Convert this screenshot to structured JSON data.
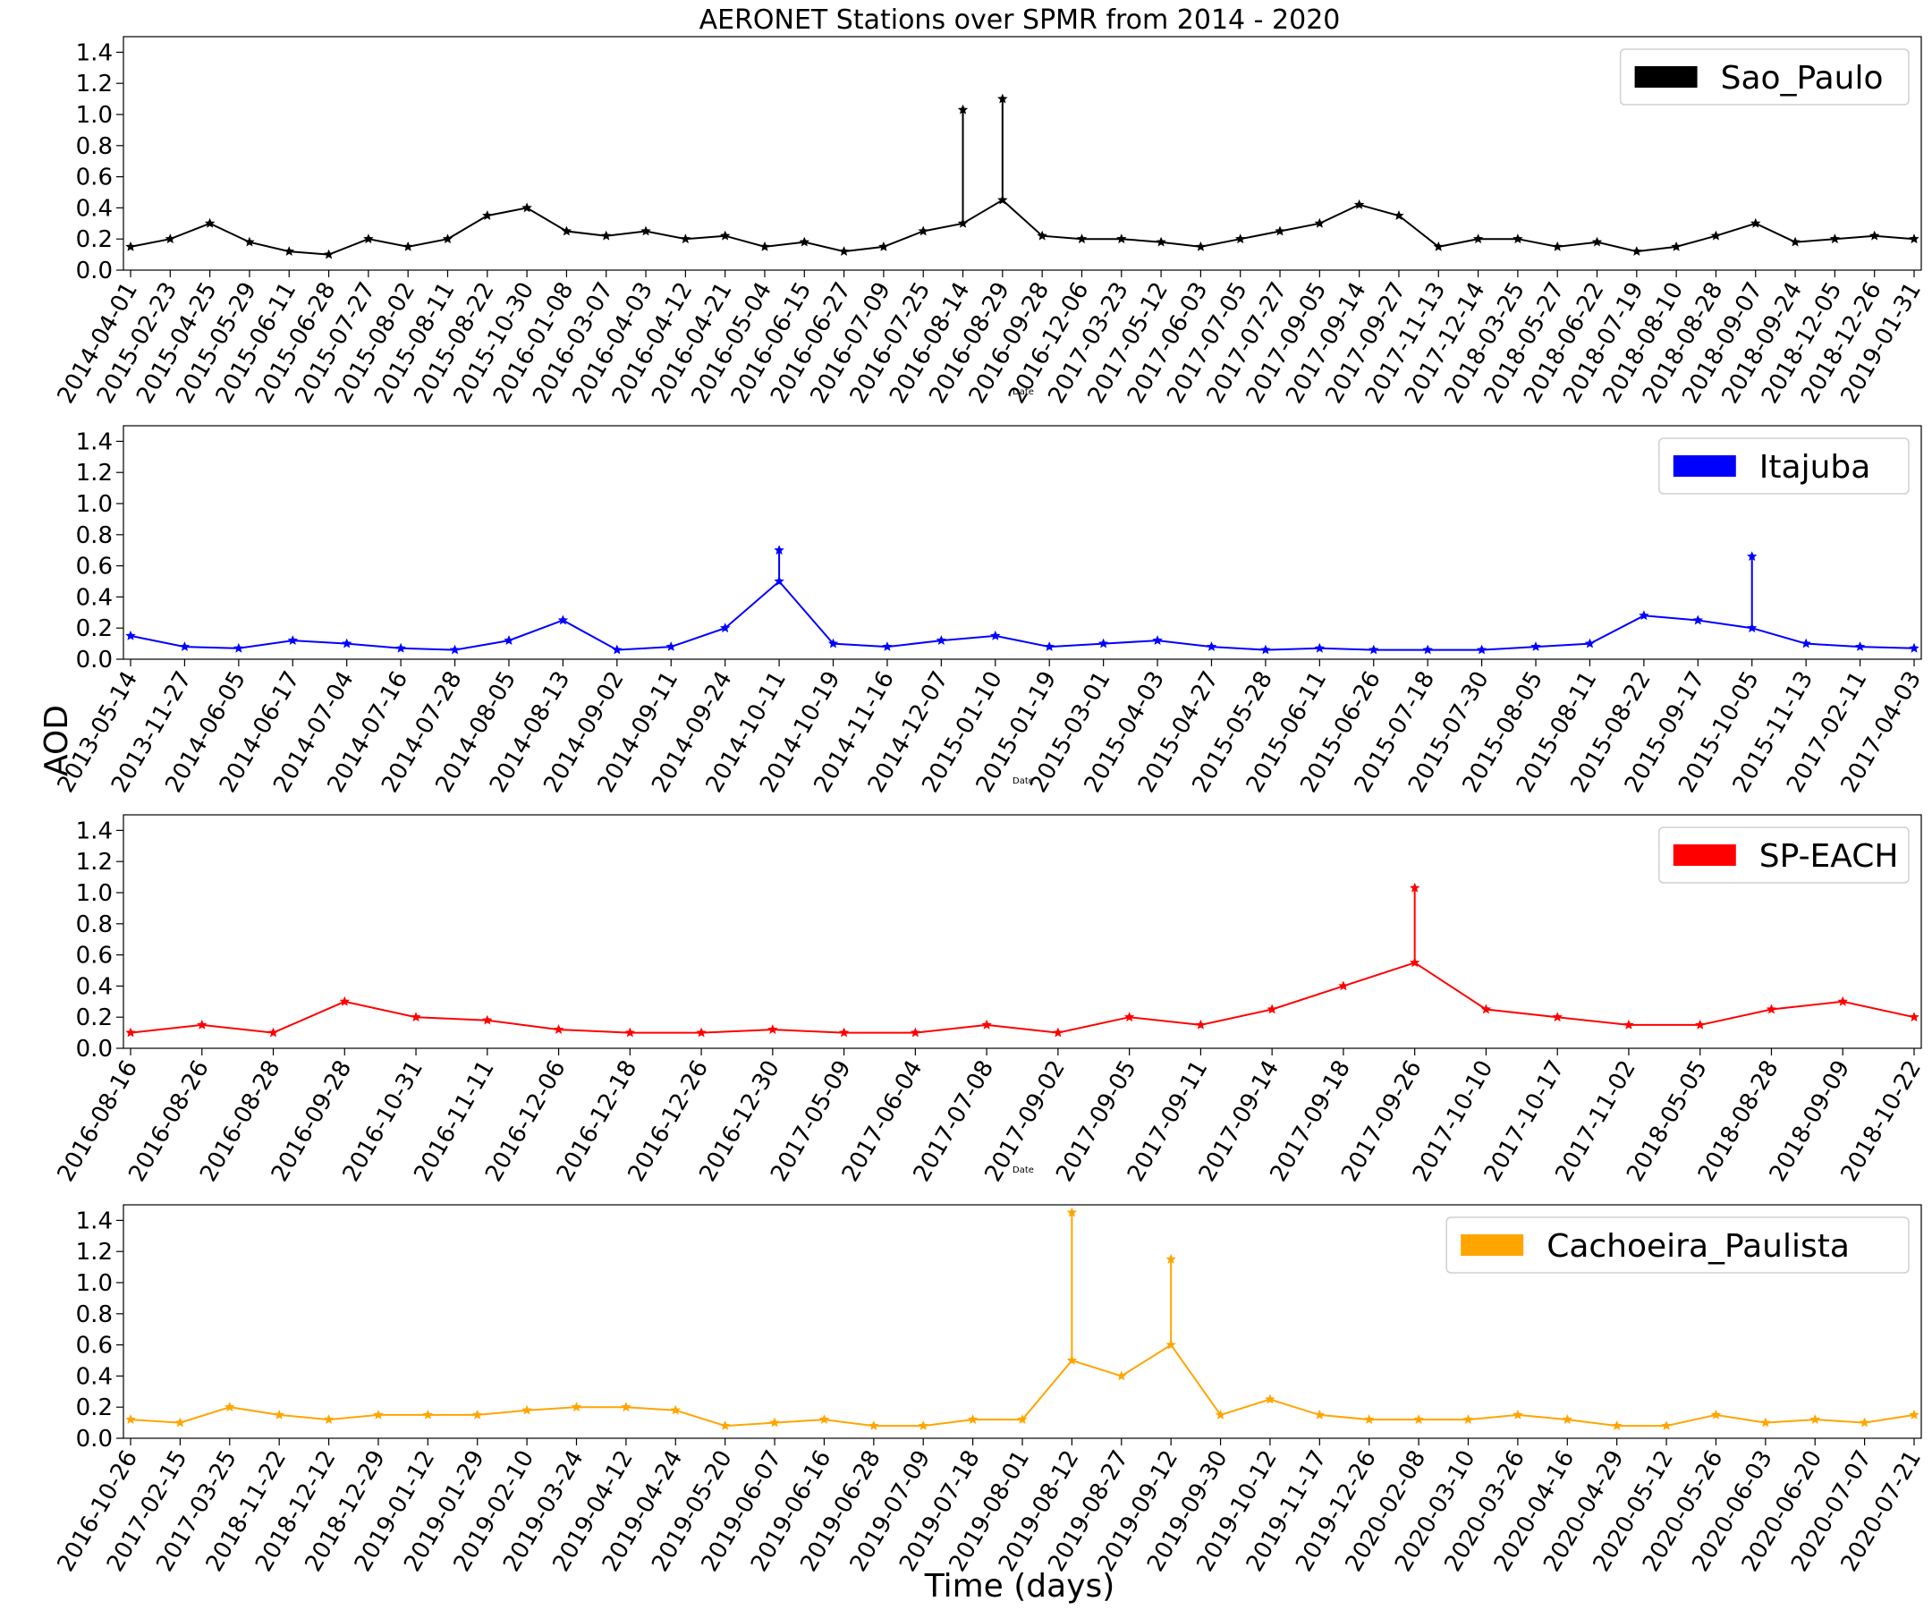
{
  "figure": {
    "title": "AERONET Stations over SPMR from 2014 - 2020",
    "ylabel": "AOD",
    "xlabel": "Time (days)"
  },
  "chart_data": [
    {
      "type": "line",
      "title": "AERONET Stations over SPMR from 2014 - 2020",
      "xlabel": "Date",
      "ylabel": "",
      "ylim": [
        0,
        1.5
      ],
      "yticks": [
        0.0,
        0.2,
        0.4,
        0.6,
        0.8,
        1.0,
        1.2,
        1.4
      ],
      "legend_position": "top-right",
      "grid": false,
      "marker": "star",
      "series": [
        {
          "name": "Sao_Paulo",
          "color": "#000000",
          "x": [
            "2014-04-01",
            "2015-02-23",
            "2015-04-25",
            "2015-05-29",
            "2015-06-11",
            "2015-06-28",
            "2015-07-27",
            "2015-08-02",
            "2015-08-11",
            "2015-08-22",
            "2015-10-30",
            "2016-01-08",
            "2016-03-07",
            "2016-04-03",
            "2016-04-12",
            "2016-04-21",
            "2016-05-04",
            "2016-06-15",
            "2016-06-27",
            "2016-07-09",
            "2016-07-25",
            "2016-08-14",
            "2016-08-29",
            "2016-09-28",
            "2016-12-06",
            "2017-03-23",
            "2017-05-12",
            "2017-06-03",
            "2017-07-05",
            "2017-07-27",
            "2017-09-05",
            "2017-09-14",
            "2017-09-27",
            "2017-11-13",
            "2017-12-14",
            "2018-03-25",
            "2018-05-27",
            "2018-06-22",
            "2018-07-19",
            "2018-08-10",
            "2018-08-28",
            "2018-09-07",
            "2018-09-24",
            "2018-12-05",
            "2018-12-26",
            "2019-01-31"
          ],
          "values": [
            0.15,
            0.2,
            0.3,
            0.18,
            0.12,
            0.1,
            0.2,
            0.15,
            0.2,
            0.35,
            0.4,
            0.25,
            0.22,
            0.25,
            0.2,
            0.22,
            0.15,
            0.18,
            0.12,
            0.15,
            0.25,
            0.3,
            0.45,
            0.22,
            0.2,
            0.2,
            0.18,
            0.15,
            0.2,
            0.25,
            0.3,
            0.42,
            0.35,
            0.15,
            0.2,
            0.2,
            0.15,
            0.18,
            0.12,
            0.15,
            0.22,
            0.3,
            0.18,
            0.2,
            0.22,
            0.2
          ]
        }
      ],
      "annotations": [
        {
          "x": "2016-08-14",
          "value": 1.03
        },
        {
          "x": "2016-08-29",
          "value": 1.1
        }
      ]
    },
    {
      "type": "line",
      "xlabel": "Date",
      "ylabel": "",
      "ylim": [
        0,
        1.5
      ],
      "yticks": [
        0.0,
        0.2,
        0.4,
        0.6,
        0.8,
        1.0,
        1.2,
        1.4
      ],
      "legend_position": "top-right",
      "grid": false,
      "marker": "star",
      "series": [
        {
          "name": "Itajuba",
          "color": "#0000ff",
          "x": [
            "2013-05-14",
            "2013-11-27",
            "2014-06-05",
            "2014-06-17",
            "2014-07-04",
            "2014-07-16",
            "2014-07-28",
            "2014-08-05",
            "2014-08-13",
            "2014-09-02",
            "2014-09-11",
            "2014-09-24",
            "2014-10-11",
            "2014-10-19",
            "2014-11-16",
            "2014-12-07",
            "2015-01-10",
            "2015-01-19",
            "2015-03-01",
            "2015-04-03",
            "2015-04-27",
            "2015-05-28",
            "2015-06-11",
            "2015-06-26",
            "2015-07-18",
            "2015-07-30",
            "2015-08-05",
            "2015-08-11",
            "2015-08-22",
            "2015-09-17",
            "2015-10-05",
            "2015-11-13",
            "2017-02-11",
            "2017-04-03"
          ],
          "values": [
            0.15,
            0.08,
            0.07,
            0.12,
            0.1,
            0.07,
            0.06,
            0.12,
            0.25,
            0.06,
            0.08,
            0.2,
            0.5,
            0.1,
            0.08,
            0.12,
            0.15,
            0.08,
            0.1,
            0.12,
            0.08,
            0.06,
            0.07,
            0.06,
            0.06,
            0.06,
            0.08,
            0.1,
            0.28,
            0.25,
            0.2,
            0.1,
            0.08,
            0.07
          ]
        }
      ],
      "annotations": [
        {
          "x": "2014-10-11",
          "value": 0.7
        },
        {
          "x": "2015-10-05",
          "value": 0.66
        }
      ]
    },
    {
      "type": "line",
      "xlabel": "Date",
      "ylabel": "",
      "ylim": [
        0,
        1.5
      ],
      "yticks": [
        0.0,
        0.2,
        0.4,
        0.6,
        0.8,
        1.0,
        1.2,
        1.4
      ],
      "legend_position": "top-right",
      "grid": false,
      "marker": "star",
      "series": [
        {
          "name": "SP-EACH",
          "color": "#ff0000",
          "x": [
            "2016-08-16",
            "2016-08-26",
            "2016-08-28",
            "2016-09-28",
            "2016-10-31",
            "2016-11-11",
            "2016-12-06",
            "2016-12-18",
            "2016-12-26",
            "2016-12-30",
            "2017-05-09",
            "2017-06-04",
            "2017-07-08",
            "2017-09-02",
            "2017-09-05",
            "2017-09-11",
            "2017-09-14",
            "2017-09-18",
            "2017-09-26",
            "2017-10-10",
            "2017-10-17",
            "2017-11-02",
            "2018-05-05",
            "2018-08-28",
            "2018-09-09",
            "2018-10-22"
          ],
          "values": [
            0.1,
            0.15,
            0.1,
            0.3,
            0.2,
            0.18,
            0.12,
            0.1,
            0.1,
            0.12,
            0.1,
            0.1,
            0.15,
            0.1,
            0.2,
            0.15,
            0.25,
            0.4,
            0.55,
            0.25,
            0.2,
            0.15,
            0.15,
            0.25,
            0.3,
            0.2
          ]
        }
      ],
      "annotations": [
        {
          "x": "2017-09-26",
          "value": 1.03
        }
      ]
    },
    {
      "type": "line",
      "xlabel": "Time (days)",
      "ylabel": "",
      "ylim": [
        0,
        1.5
      ],
      "yticks": [
        0.0,
        0.2,
        0.4,
        0.6,
        0.8,
        1.0,
        1.2,
        1.4
      ],
      "legend_position": "top-right",
      "grid": false,
      "marker": "star",
      "series": [
        {
          "name": "Cachoeira_Paulista",
          "color": "#ffa500",
          "x": [
            "2016-10-26",
            "2017-02-15",
            "2017-03-25",
            "2018-11-22",
            "2018-12-12",
            "2018-12-29",
            "2019-01-12",
            "2019-01-29",
            "2019-02-10",
            "2019-03-24",
            "2019-04-12",
            "2019-04-24",
            "2019-05-20",
            "2019-06-07",
            "2019-06-16",
            "2019-06-28",
            "2019-07-09",
            "2019-07-18",
            "2019-08-01",
            "2019-08-12",
            "2019-08-27",
            "2019-09-12",
            "2019-09-30",
            "2019-10-12",
            "2019-11-17",
            "2019-12-26",
            "2020-02-08",
            "2020-03-10",
            "2020-03-26",
            "2020-04-16",
            "2020-04-29",
            "2020-05-12",
            "2020-05-26",
            "2020-06-03",
            "2020-06-20",
            "2020-07-07",
            "2020-07-21"
          ],
          "values": [
            0.12,
            0.1,
            0.2,
            0.15,
            0.12,
            0.15,
            0.15,
            0.15,
            0.18,
            0.2,
            0.2,
            0.18,
            0.08,
            0.1,
            0.12,
            0.08,
            0.08,
            0.12,
            0.12,
            0.5,
            0.4,
            0.6,
            0.15,
            0.25,
            0.15,
            0.12,
            0.12,
            0.12,
            0.15,
            0.12,
            0.08,
            0.08,
            0.15,
            0.1,
            0.12,
            0.1,
            0.15
          ]
        }
      ],
      "annotations": [
        {
          "x": "2019-08-12",
          "value": 1.45
        },
        {
          "x": "2019-09-12",
          "value": 1.15
        }
      ]
    }
  ]
}
